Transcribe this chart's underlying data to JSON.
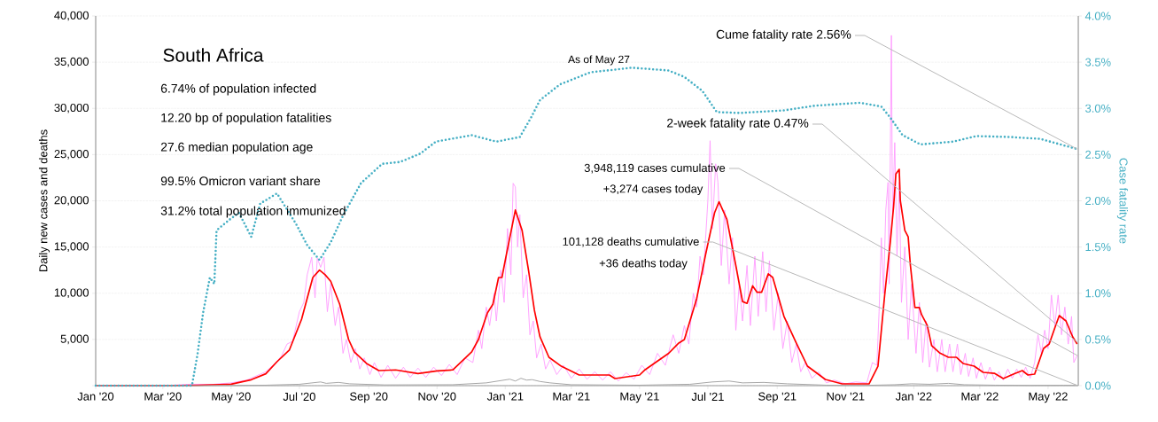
{
  "chart_data": {
    "type": "line",
    "title": "South Africa",
    "ylabel": "Daily new cases and deaths",
    "y2label": "Case fatality rate",
    "xlim": [
      "2020-01-01",
      "2022-05-28"
    ],
    "xticks": [
      {
        "value": "2020-01-01",
        "label": "Jan '20"
      },
      {
        "value": "2020-03-01",
        "label": "Mar '20"
      },
      {
        "value": "2020-05-01",
        "label": "May '20"
      },
      {
        "value": "2020-07-01",
        "label": "Jul '20"
      },
      {
        "value": "2020-09-01",
        "label": "Sep '20"
      },
      {
        "value": "2020-11-01",
        "label": "Nov '20"
      },
      {
        "value": "2021-01-01",
        "label": "Jan '21"
      },
      {
        "value": "2021-03-01",
        "label": "Mar '21"
      },
      {
        "value": "2021-05-01",
        "label": "May '21"
      },
      {
        "value": "2021-07-01",
        "label": "Jul '21"
      },
      {
        "value": "2021-09-01",
        "label": "Sep '21"
      },
      {
        "value": "2021-11-01",
        "label": "Nov '21"
      },
      {
        "value": "2022-01-01",
        "label": "Jan '22"
      },
      {
        "value": "2022-03-01",
        "label": "Mar '22"
      },
      {
        "value": "2022-05-01",
        "label": "May '22"
      }
    ],
    "ylim": [
      0,
      40000
    ],
    "yticks": [
      {
        "value": 0,
        "label": null
      },
      {
        "value": 5000,
        "label": "5,000"
      },
      {
        "value": 10000,
        "label": "10,000"
      },
      {
        "value": 15000,
        "label": "15,000"
      },
      {
        "value": 20000,
        "label": "20,000"
      },
      {
        "value": 25000,
        "label": "25,000"
      },
      {
        "value": 30000,
        "label": "30,000"
      },
      {
        "value": 35000,
        "label": "35,000"
      },
      {
        "value": 40000,
        "label": "40,000"
      }
    ],
    "y2lim": [
      0,
      4
    ],
    "y2ticks": [
      {
        "value": 0,
        "label": "0.0%"
      },
      {
        "value": 0.5,
        "label": "0.5%"
      },
      {
        "value": 1,
        "label": "1.0%"
      },
      {
        "value": 1.5,
        "label": "1.5%"
      },
      {
        "value": 2,
        "label": "2.0%"
      },
      {
        "value": 2.5,
        "label": "2.5%"
      },
      {
        "value": 3,
        "label": "3.0%"
      },
      {
        "value": 3.5,
        "label": "3.5%"
      },
      {
        "value": 4,
        "label": "4.0%"
      }
    ],
    "grid": "y",
    "series": [
      {
        "color": "#ff99ff",
        "line_style": "solid",
        "x": [
          "2020-01-01",
          "2020-03-01",
          "2020-03-25",
          "2020-04-15",
          "2020-05-01",
          "2020-05-15",
          "2020-06-01",
          "2020-06-10",
          "2020-06-15",
          "2020-06-20",
          "2020-06-25",
          "2020-07-01",
          "2020-07-05",
          "2020-07-08",
          "2020-07-12",
          "2020-07-15",
          "2020-07-17",
          "2020-07-20",
          "2020-07-23",
          "2020-07-26",
          "2020-07-29",
          "2020-08-02",
          "2020-08-05",
          "2020-08-09",
          "2020-08-12",
          "2020-08-16",
          "2020-08-20",
          "2020-08-24",
          "2020-08-28",
          "2020-09-02",
          "2020-09-06",
          "2020-09-12",
          "2020-09-18",
          "2020-09-25",
          "2020-10-02",
          "2020-10-08",
          "2020-10-15",
          "2020-10-22",
          "2020-10-29",
          "2020-11-05",
          "2020-11-12",
          "2020-11-19",
          "2020-11-26",
          "2020-12-03",
          "2020-12-08",
          "2020-12-11",
          "2020-12-15",
          "2020-12-18",
          "2020-12-22",
          "2020-12-24",
          "2020-12-28",
          "2020-12-31",
          "2021-01-03",
          "2021-01-06",
          "2021-01-08",
          "2021-01-10",
          "2021-01-12",
          "2021-01-14",
          "2021-01-17",
          "2021-01-20",
          "2021-01-23",
          "2021-01-26",
          "2021-01-29",
          "2021-02-02",
          "2021-02-06",
          "2021-02-10",
          "2021-02-16",
          "2021-02-22",
          "2021-03-01",
          "2021-03-08",
          "2021-03-15",
          "2021-03-22",
          "2021-03-29",
          "2021-04-05",
          "2021-04-12",
          "2021-04-19",
          "2021-04-26",
          "2021-05-03",
          "2021-05-10",
          "2021-05-17",
          "2021-05-24",
          "2021-05-31",
          "2021-06-05",
          "2021-06-10",
          "2021-06-14",
          "2021-06-18",
          "2021-06-21",
          "2021-06-24",
          "2021-06-27",
          "2021-07-01",
          "2021-07-03",
          "2021-07-05",
          "2021-07-08",
          "2021-07-10",
          "2021-07-13",
          "2021-07-16",
          "2021-07-20",
          "2021-07-23",
          "2021-07-26",
          "2021-07-29",
          "2021-08-01",
          "2021-08-05",
          "2021-08-08",
          "2021-08-12",
          "2021-08-15",
          "2021-08-19",
          "2021-08-22",
          "2021-08-25",
          "2021-08-29",
          "2021-09-02",
          "2021-09-06",
          "2021-09-10",
          "2021-09-14",
          "2021-09-18",
          "2021-09-22",
          "2021-09-26",
          "2021-10-02",
          "2021-10-08",
          "2021-10-15",
          "2021-10-22",
          "2021-11-01",
          "2021-11-10",
          "2021-11-20",
          "2021-11-25",
          "2021-11-29",
          "2021-12-01",
          "2021-12-03",
          "2021-12-05",
          "2021-12-07",
          "2021-12-09",
          "2021-12-10",
          "2021-12-12",
          "2021-12-13",
          "2021-12-15",
          "2021-12-17",
          "2021-12-19",
          "2021-12-21",
          "2021-12-24",
          "2021-12-27",
          "2021-12-30",
          "2022-01-03",
          "2022-01-06",
          "2022-01-09",
          "2022-01-12",
          "2022-01-15",
          "2022-01-19",
          "2022-01-22",
          "2022-01-26",
          "2022-01-29",
          "2022-02-02",
          "2022-02-05",
          "2022-02-09",
          "2022-02-12",
          "2022-02-16",
          "2022-02-19",
          "2022-02-23",
          "2022-02-26",
          "2022-03-02",
          "2022-03-06",
          "2022-03-10",
          "2022-03-14",
          "2022-03-18",
          "2022-03-22",
          "2022-03-26",
          "2022-03-30",
          "2022-04-03",
          "2022-04-07",
          "2022-04-11",
          "2022-04-15",
          "2022-04-19",
          "2022-04-22",
          "2022-04-25",
          "2022-04-28",
          "2022-05-01",
          "2022-05-04",
          "2022-05-07",
          "2022-05-10",
          "2022-05-13",
          "2022-05-16",
          "2022-05-19",
          "2022-05-22",
          "2022-05-24",
          "2022-05-27"
        ],
        "values": [
          0,
          0,
          150,
          150,
          300,
          600,
          1500,
          2500,
          3200,
          4500,
          4800,
          8000,
          9000,
          12000,
          13900,
          9500,
          13800,
          12800,
          13900,
          8000,
          11000,
          6500,
          8500,
          3500,
          5000,
          2500,
          4000,
          1800,
          3000,
          1200,
          2500,
          900,
          2200,
          800,
          2000,
          900,
          1900,
          900,
          2000,
          1100,
          2300,
          1200,
          3000,
          2500,
          6000,
          4000,
          8500,
          6500,
          10000,
          7000,
          12500,
          9000,
          17000,
          12000,
          21900,
          21500,
          15000,
          18500,
          9500,
          12000,
          5500,
          7000,
          3000,
          4500,
          1800,
          2800,
          1200,
          2200,
          800,
          1800,
          700,
          1500,
          600,
          1500,
          500,
          1400,
          700,
          2200,
          1200,
          3500,
          2200,
          5500,
          3500,
          6500,
          4500,
          10000,
          8500,
          14000,
          12000,
          20000,
          26500,
          17000,
          24000,
          22000,
          13000,
          19000,
          11000,
          16000,
          6000,
          11000,
          7000,
          13000,
          6500,
          14000,
          7500,
          14500,
          8000,
          13500,
          6000,
          10000,
          4000,
          7000,
          2500,
          4500,
          1500,
          2500,
          800,
          1500,
          300,
          600,
          200,
          400,
          300,
          2500,
          2200,
          8000,
          16000,
          10000,
          19000,
          22000,
          11000,
          37900,
          18000,
          26300,
          14000,
          22000,
          9000,
          15000,
          5000,
          11000,
          3500,
          9000,
          2500,
          7000,
          2000,
          5000,
          1500,
          5000,
          1500,
          4500,
          1500,
          4500,
          1200,
          3500,
          1000,
          3000,
          800,
          2500,
          700,
          2000,
          600,
          1500,
          600,
          1800,
          800,
          1800,
          900,
          2000,
          800,
          2500,
          5500,
          3500,
          6000,
          4000,
          9800,
          6500,
          9800,
          5500,
          8500,
          4500,
          7500,
          2500,
          3274
        ]
      },
      {
        "color": "#ff0000",
        "line_style": "solid",
        "x": [
          "2020-01-01",
          "2020-03-01",
          "2020-04-01",
          "2020-05-01",
          "2020-05-19",
          "2020-06-01",
          "2020-06-11",
          "2020-06-22",
          "2020-07-03",
          "2020-07-13",
          "2020-07-19",
          "2020-07-24",
          "2020-07-29",
          "2020-08-06",
          "2020-08-14",
          "2020-08-19",
          "2020-08-30",
          "2020-09-10",
          "2020-09-25",
          "2020-10-15",
          "2020-11-01",
          "2020-11-15",
          "2020-12-02",
          "2020-12-08",
          "2020-12-16",
          "2020-12-21",
          "2020-12-26",
          "2020-12-29",
          "2021-01-02",
          "2021-01-10",
          "2021-01-16",
          "2021-01-22",
          "2021-01-27",
          "2021-02-01",
          "2021-02-09",
          "2021-02-20",
          "2021-03-08",
          "2021-04-04",
          "2021-04-09",
          "2021-05-01",
          "2021-05-06",
          "2021-05-27",
          "2021-06-05",
          "2021-06-10",
          "2021-06-21",
          "2021-06-29",
          "2021-07-07",
          "2021-07-11",
          "2021-07-18",
          "2021-07-26",
          "2021-08-01",
          "2021-08-05",
          "2021-08-10",
          "2021-08-14",
          "2021-08-18",
          "2021-08-24",
          "2021-08-28",
          "2021-09-07",
          "2021-09-18",
          "2021-09-28",
          "2021-10-14",
          "2021-10-29",
          "2021-11-22",
          "2021-11-30",
          "2021-12-06",
          "2021-12-11",
          "2021-12-14",
          "2021-12-16",
          "2021-12-19",
          "2021-12-20",
          "2021-12-24",
          "2021-12-27",
          "2021-12-29",
          "2022-01-02",
          "2022-01-06",
          "2022-01-08",
          "2022-01-13",
          "2022-01-17",
          "2022-01-24",
          "2022-02-01",
          "2022-02-08",
          "2022-02-14",
          "2022-02-24",
          "2022-03-04",
          "2022-03-14",
          "2022-03-22",
          "2022-03-31",
          "2022-04-08",
          "2022-04-13",
          "2022-04-19",
          "2022-04-27",
          "2022-05-02",
          "2022-05-07",
          "2022-05-11",
          "2022-05-17",
          "2022-05-23",
          "2022-05-27"
        ],
        "values": [
          0,
          0,
          50,
          160,
          640,
          1280,
          2590,
          3840,
          7200,
          11700,
          12500,
          12000,
          11300,
          8830,
          4990,
          3650,
          2400,
          1630,
          1700,
          1300,
          1600,
          1700,
          3650,
          4990,
          7870,
          8830,
          11700,
          11700,
          14200,
          19000,
          16800,
          12300,
          8160,
          5280,
          3070,
          2100,
          1150,
          1150,
          770,
          1150,
          1730,
          3500,
          4610,
          4990,
          9410,
          14200,
          18700,
          19900,
          18000,
          13000,
          9100,
          8900,
          10800,
          10100,
          10100,
          12100,
          11700,
          7500,
          4610,
          2110,
          670,
          190,
          190,
          2100,
          9800,
          15500,
          19400,
          22900,
          23400,
          20000,
          16800,
          16100,
          13000,
          8450,
          8450,
          7680,
          6530,
          4320,
          3550,
          3070,
          3070,
          2400,
          2110,
          1440,
          1340,
          770,
          1250,
          1630,
          1150,
          1250,
          4030,
          4510,
          6240,
          7580,
          7000,
          5280,
          4510
        ]
      },
      {
        "color": "#a6a6a6",
        "line_style": "solid",
        "x": [
          "2020-01-01",
          "2020-03-27",
          "2020-05-01",
          "2020-06-01",
          "2020-07-01",
          "2020-07-20",
          "2020-07-25",
          "2020-08-05",
          "2020-08-15",
          "2020-09-15",
          "2020-11-15",
          "2020-12-15",
          "2021-01-05",
          "2021-01-10",
          "2021-01-15",
          "2021-01-20",
          "2021-01-25",
          "2021-02-01",
          "2021-02-10",
          "2021-03-01",
          "2021-05-01",
          "2021-06-15",
          "2021-07-05",
          "2021-07-20",
          "2021-08-01",
          "2021-08-20",
          "2021-09-10",
          "2021-10-15",
          "2021-11-15",
          "2021-12-15",
          "2021-12-30",
          "2022-01-15",
          "2022-02-01",
          "2022-02-15",
          "2022-03-15",
          "2022-04-15",
          "2022-05-15",
          "2022-05-27"
        ],
        "values": [
          0,
          0,
          20,
          50,
          150,
          400,
          250,
          350,
          200,
          80,
          100,
          300,
          700,
          500,
          800,
          600,
          650,
          450,
          300,
          100,
          50,
          150,
          400,
          500,
          300,
          350,
          200,
          50,
          20,
          100,
          200,
          150,
          250,
          100,
          50,
          30,
          40,
          36
        ]
      },
      {
        "color": "#45afc4",
        "line_style": "dotted",
        "axis": "y2",
        "x": [
          "2020-01-01",
          "2020-03-27",
          "2020-04-01",
          "2020-04-06",
          "2020-04-12",
          "2020-04-16",
          "2020-04-18",
          "2020-04-25",
          "2020-04-30",
          "2020-05-08",
          "2020-05-19",
          "2020-05-27",
          "2020-06-11",
          "2020-06-28",
          "2020-07-08",
          "2020-07-19",
          "2020-07-29",
          "2020-08-09",
          "2020-08-25",
          "2020-09-13",
          "2020-09-29",
          "2020-10-17",
          "2020-10-31",
          "2020-12-02",
          "2020-12-24",
          "2021-01-14",
          "2021-01-24",
          "2021-02-01",
          "2021-02-19",
          "2021-03-18",
          "2021-04-24",
          "2021-05-27",
          "2021-06-10",
          "2021-06-26",
          "2021-07-09",
          "2021-07-30",
          "2021-09-08",
          "2021-10-05",
          "2021-11-14",
          "2021-12-03",
          "2021-12-11",
          "2021-12-22",
          "2022-01-07",
          "2022-02-05",
          "2022-02-26",
          "2022-03-29",
          "2022-04-24",
          "2022-05-27"
        ],
        "values": [
          0,
          0,
          0.34,
          0.79,
          1.17,
          1.1,
          1.68,
          1.75,
          1.8,
          1.87,
          1.61,
          1.97,
          2.08,
          1.75,
          1.52,
          1.36,
          1.55,
          1.84,
          2.19,
          2.4,
          2.42,
          2.51,
          2.64,
          2.71,
          2.64,
          2.69,
          2.9,
          3.09,
          3.26,
          3.39,
          3.44,
          3.41,
          3.34,
          3.19,
          2.96,
          2.95,
          2.98,
          3.03,
          3.06,
          3.02,
          2.9,
          2.71,
          2.61,
          2.64,
          2.7,
          2.69,
          2.67,
          2.56
        ]
      }
    ],
    "annotations": [
      "6.74% of population infected",
      "12.20 bp of population fatalities",
      "27.6 median population age",
      "99.5% Omicron variant share",
      "31.2% total population immunized",
      "As of May 27",
      {
        "text": "Cume fatality rate 2.56%",
        "x": "2022-05-27",
        "y": 25600
      },
      {
        "text": "2-week fatality rate 0.47%",
        "x": "2022-05-27",
        "y": 4700
      },
      {
        "text": "3,948,119 cases cumulative",
        "x": "2022-05-27",
        "y": 3274
      },
      "+3,274 cases today",
      {
        "text": "101,128 deaths cumulative",
        "x": "2022-05-27",
        "y": 36
      },
      "+36 deaths today"
    ]
  }
}
